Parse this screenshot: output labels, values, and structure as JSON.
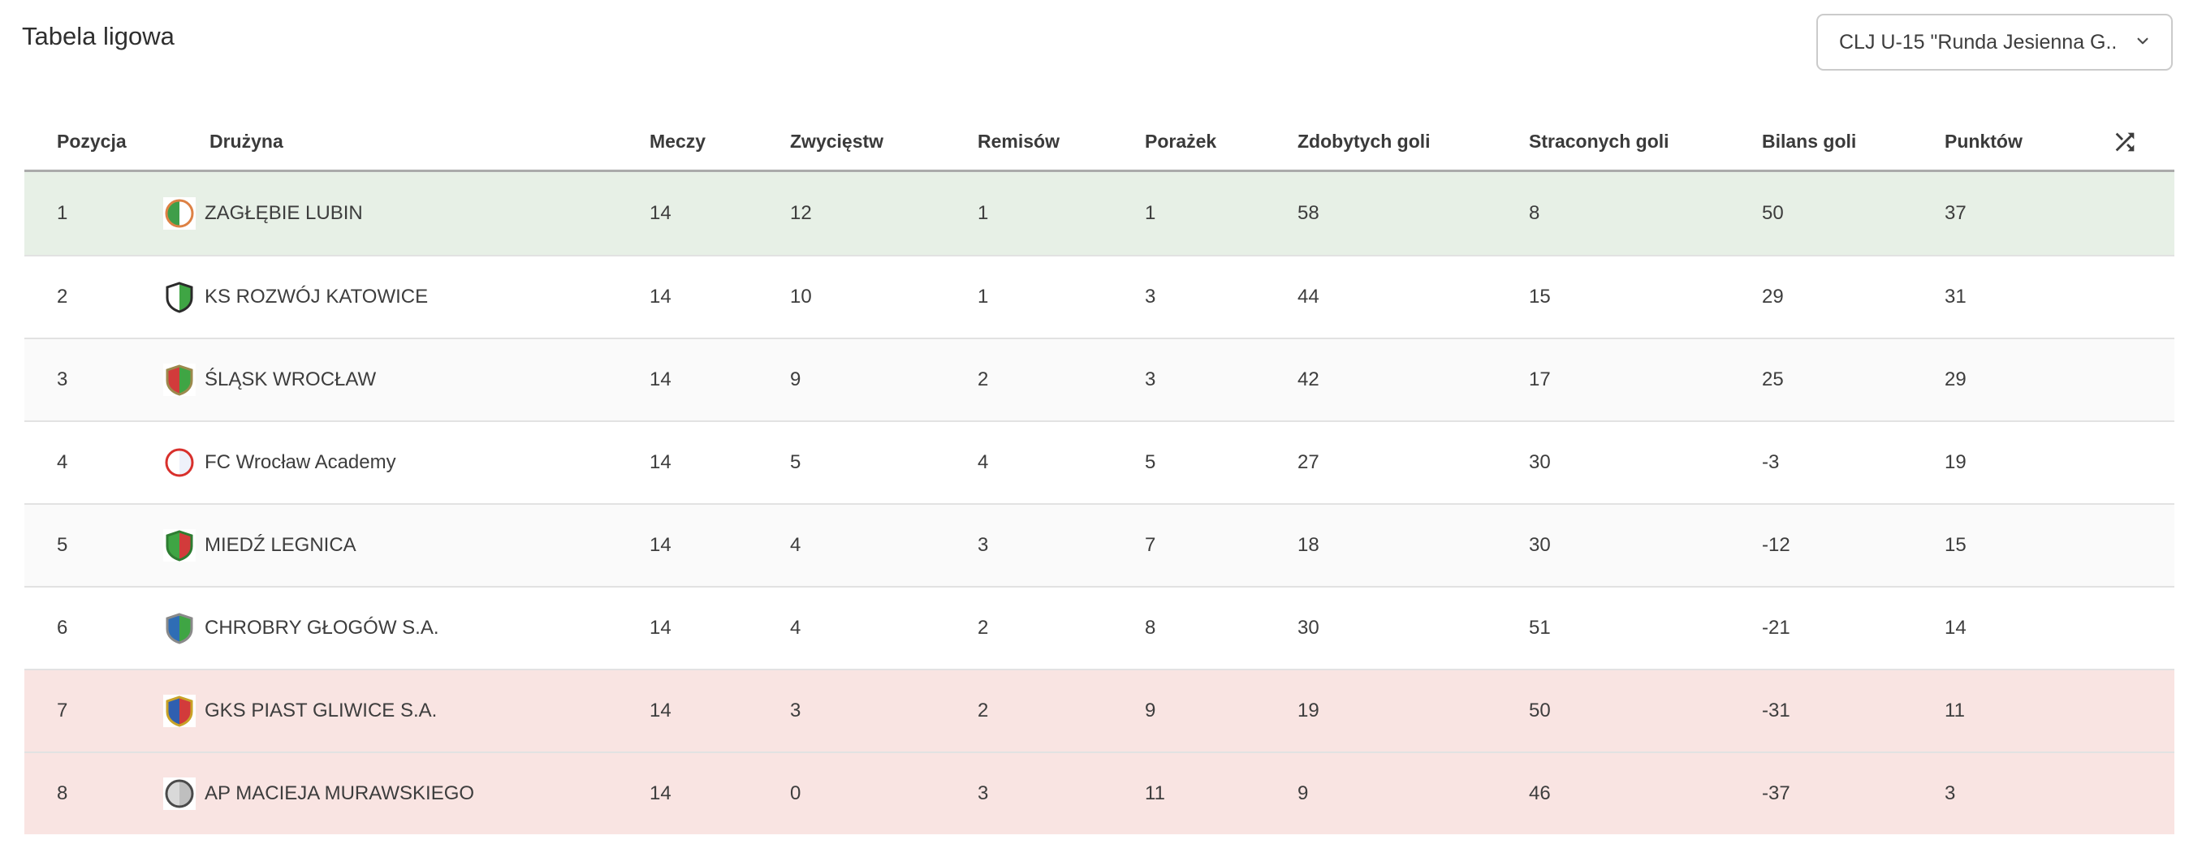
{
  "page": {
    "title": "Tabela ligowa"
  },
  "filter": {
    "value": "CLJ U-15 \"Runda Jesienna G...",
    "chevron_icon": "chevron-down"
  },
  "colors": {
    "promotion_bg": "#e7f0e6",
    "relegation_bg": "#f9e4e2",
    "alt_bg": "#fafafa",
    "divider": "#e2e2e2",
    "header_border": "#ababab",
    "text": "#3d3d3d"
  },
  "table": {
    "columns": [
      "Pozycja",
      "Drużyna",
      "Meczy",
      "Zwycięstw",
      "Remisów",
      "Porażek",
      "Zdobytych goli",
      "Straconych goli",
      "Bilans goli",
      "Punktów"
    ],
    "shuffle_icon": "shuffle-arrows",
    "rows": [
      {
        "position": "1",
        "team": "ZAGŁĘBIE LUBIN",
        "matches": "14",
        "wins": "12",
        "draws": "1",
        "losses": "1",
        "goals_for": "58",
        "goals_against": "8",
        "goal_diff": "50",
        "points": "37",
        "tint": "promotion",
        "logo": {
          "shape": "circle",
          "colors": [
            "#dd8144",
            "#3f9e49",
            "#ffffff"
          ]
        }
      },
      {
        "position": "2",
        "team": "KS ROZWÓJ KATOWICE",
        "matches": "14",
        "wins": "10",
        "draws": "1",
        "losses": "3",
        "goals_for": "44",
        "goals_against": "15",
        "goal_diff": "29",
        "points": "31",
        "tint": "white",
        "logo": {
          "shape": "shield",
          "colors": [
            "#2b2b2b",
            "#ffffff",
            "#3fa544"
          ]
        }
      },
      {
        "position": "3",
        "team": "ŚLĄSK WROCŁAW",
        "matches": "14",
        "wins": "9",
        "draws": "2",
        "losses": "3",
        "goals_for": "42",
        "goals_against": "17",
        "goal_diff": "25",
        "points": "29",
        "tint": "alt",
        "logo": {
          "shape": "shield",
          "colors": [
            "#9c8a4d",
            "#d23b3b",
            "#3fa544"
          ]
        }
      },
      {
        "position": "4",
        "team": "FC Wrocław Academy",
        "matches": "14",
        "wins": "5",
        "draws": "4",
        "losses": "5",
        "goals_for": "27",
        "goals_against": "30",
        "goal_diff": "-3",
        "points": "19",
        "tint": "white",
        "logo": {
          "shape": "circle",
          "colors": [
            "#d8302c",
            "#ffffff",
            "#eef1fa"
          ]
        }
      },
      {
        "position": "5",
        "team": "MIEDŹ LEGNICA",
        "matches": "14",
        "wins": "4",
        "draws": "3",
        "losses": "7",
        "goals_for": "18",
        "goals_against": "30",
        "goal_diff": "-12",
        "points": "15",
        "tint": "alt",
        "logo": {
          "shape": "shield",
          "colors": [
            "#2e7d32",
            "#3fa544",
            "#d23b3b"
          ]
        }
      },
      {
        "position": "6",
        "team": "CHROBRY GŁOGÓW S.A.",
        "matches": "14",
        "wins": "4",
        "draws": "2",
        "losses": "8",
        "goals_for": "30",
        "goals_against": "51",
        "goal_diff": "-21",
        "points": "14",
        "tint": "white",
        "logo": {
          "shape": "shield",
          "colors": [
            "#8a8a8a",
            "#2f6db5",
            "#3fa544"
          ]
        }
      },
      {
        "position": "7",
        "team": "GKS PIAST GLIWICE S.A.",
        "matches": "14",
        "wins": "3",
        "draws": "2",
        "losses": "9",
        "goals_for": "19",
        "goals_against": "50",
        "goal_diff": "-31",
        "points": "11",
        "tint": "relegation",
        "logo": {
          "shape": "shield",
          "colors": [
            "#c9a227",
            "#2f5fb0",
            "#d23b3b"
          ]
        }
      },
      {
        "position": "8",
        "team": "AP MACIEJA MURAWSKIEGO",
        "matches": "14",
        "wins": "0",
        "draws": "3",
        "losses": "11",
        "goals_for": "9",
        "goals_against": "46",
        "goal_diff": "-37",
        "points": "3",
        "tint": "relegation",
        "logo": {
          "shape": "circle",
          "colors": [
            "#4a4a4a",
            "#d9d9d9",
            "#bfbfbf"
          ]
        }
      }
    ]
  }
}
